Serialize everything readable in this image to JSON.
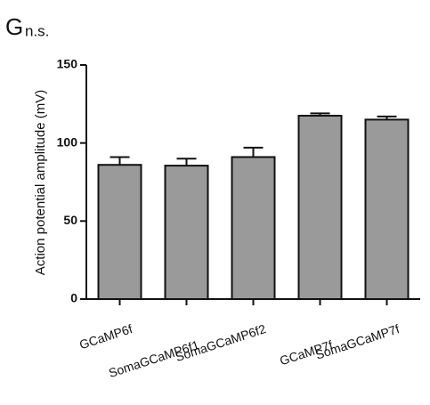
{
  "chart_data": {
    "type": "bar",
    "panel_label": "G",
    "annotation": "n.s.",
    "y_label": "Action potential amplitude (mV)",
    "categories": [
      "GCaMP6f",
      "SomaGCaMP6f1",
      "SomaGCaMP6f2",
      "GCaMP7f",
      "SomaGCaMP7f"
    ],
    "values": [
      86,
      85.5,
      91,
      117.5,
      115
    ],
    "errors": [
      5,
      4.5,
      6,
      1.5,
      2
    ],
    "color": "#9a9a9a",
    "ylim": [
      0,
      150
    ],
    "yticks": [
      0,
      50,
      100,
      150
    ]
  }
}
